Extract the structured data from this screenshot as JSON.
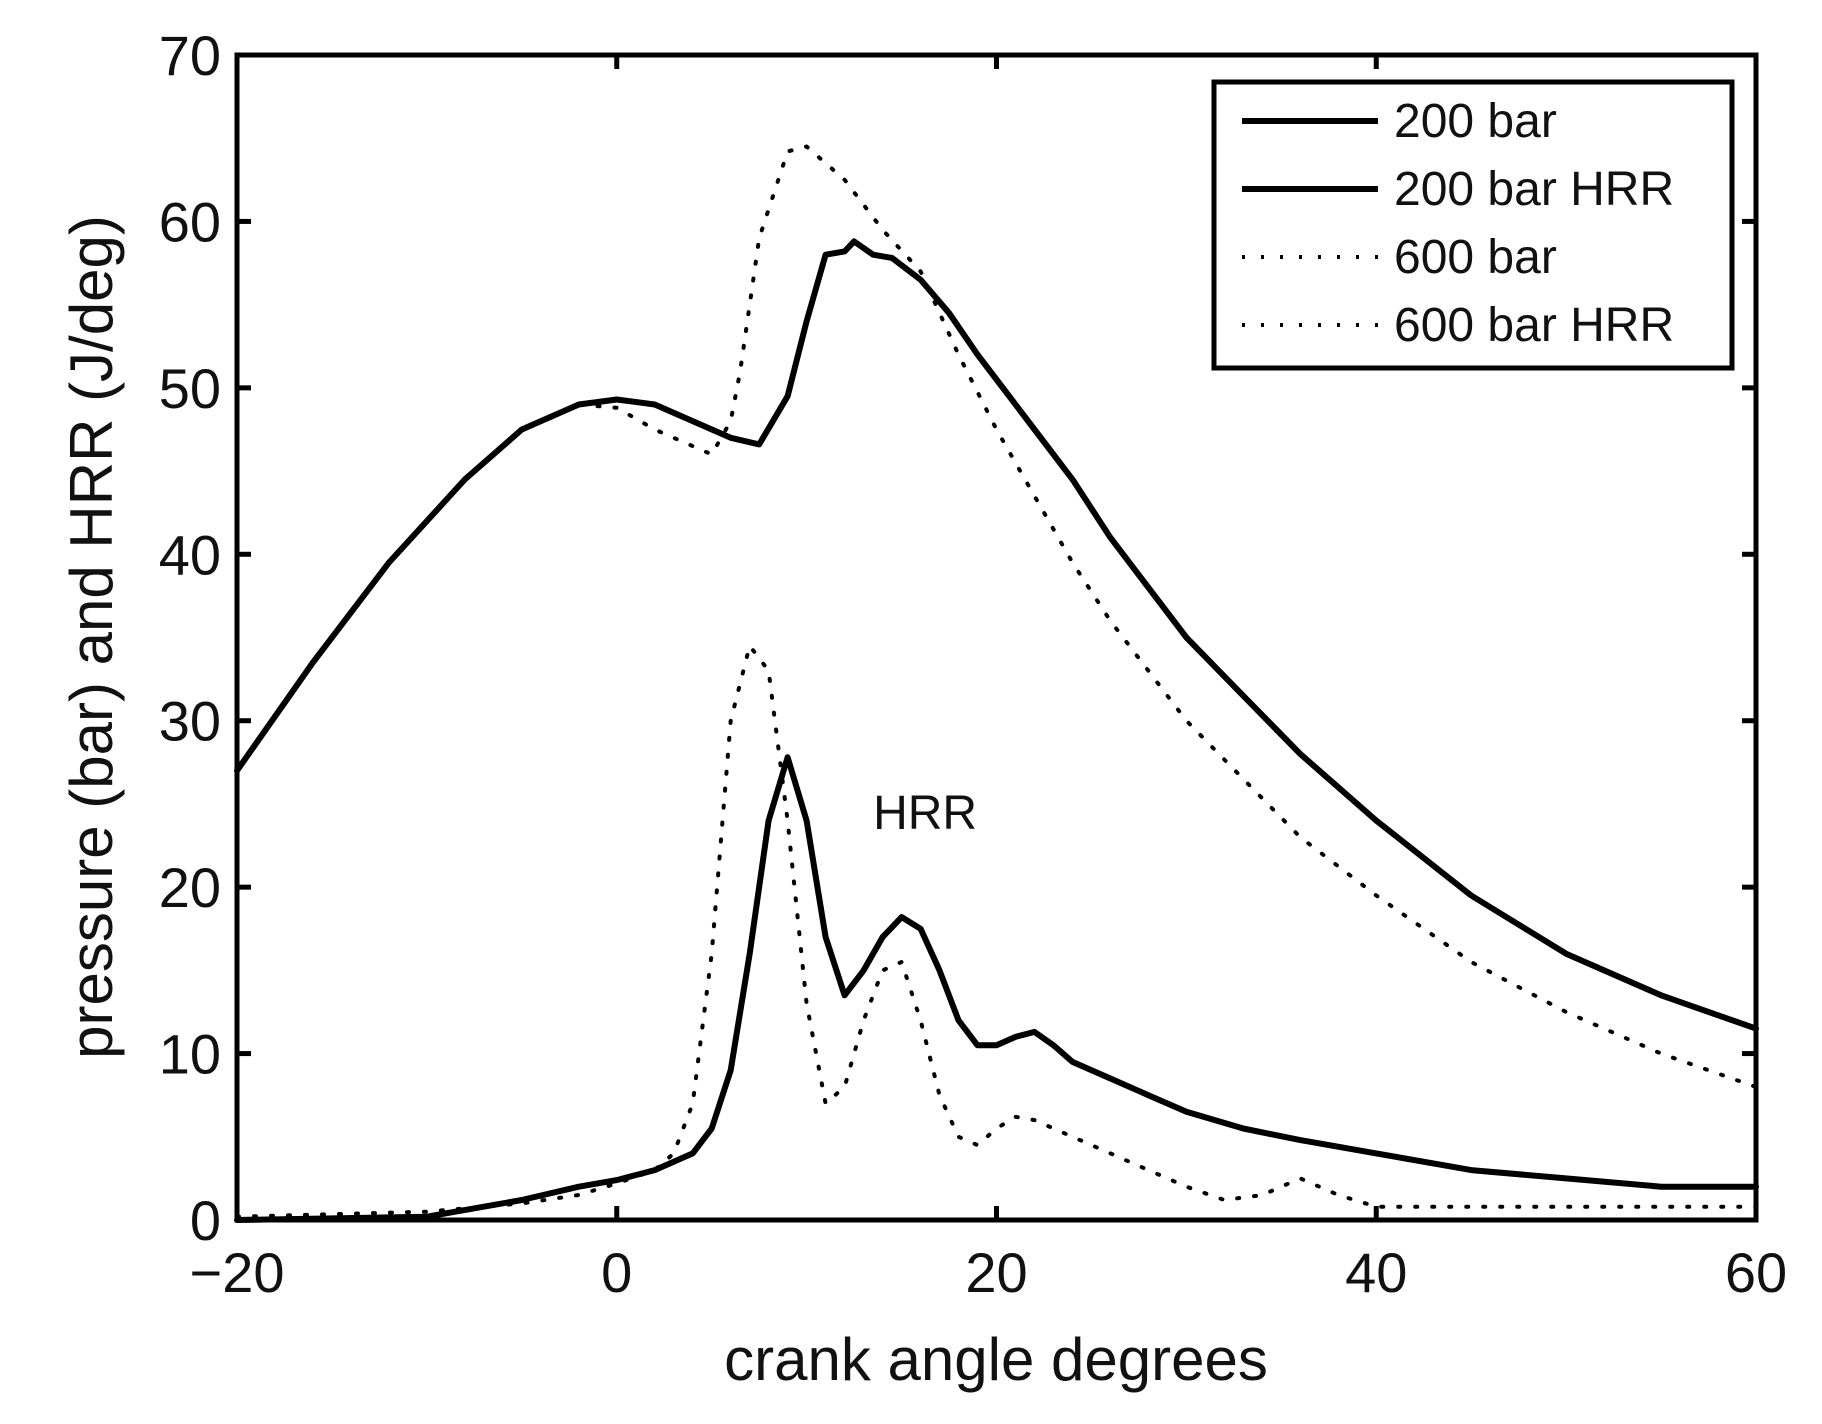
{
  "chart_data": {
    "type": "line",
    "title": "",
    "xlabel": "crank angle degrees",
    "ylabel": "pressure (bar) and HRR (J/deg)",
    "xlim": [
      -20,
      60
    ],
    "ylim": [
      0,
      70
    ],
    "x_ticks": [
      -20,
      0,
      20,
      40,
      60
    ],
    "y_ticks": [
      0,
      10,
      20,
      30,
      40,
      50,
      60,
      70
    ],
    "x_tick_labels": [
      "−20",
      "0",
      "20",
      "40",
      "60"
    ],
    "y_tick_labels": [
      "0",
      "10",
      "20",
      "30",
      "40",
      "50",
      "60",
      "70"
    ],
    "grid": false,
    "legend_position": "top-right",
    "annotations": [
      {
        "text": "HRR",
        "x": 13.5,
        "y": 23.5
      }
    ],
    "series": [
      {
        "name": "200 bar",
        "style": "solid",
        "color": "#000000",
        "x": [
          -20,
          -16,
          -12,
          -8,
          -5,
          -2,
          0,
          2,
          4,
          6,
          7.5,
          9,
          10,
          11,
          12,
          12.5,
          13.5,
          14.5,
          16,
          17.5,
          19,
          20,
          22,
          24,
          26,
          28,
          30,
          33,
          36,
          40,
          45,
          50,
          55,
          60
        ],
        "y": [
          27,
          33.5,
          39.5,
          44.5,
          47.5,
          49,
          49.3,
          49,
          48,
          47,
          46.6,
          49.5,
          54,
          58,
          58.2,
          58.8,
          58,
          57.8,
          56.5,
          54.5,
          52,
          50.5,
          47.5,
          44.5,
          41,
          38,
          35,
          31.5,
          28,
          24,
          19.5,
          16,
          13.5,
          11.5
        ]
      },
      {
        "name": "200 bar HRR",
        "style": "solid",
        "color": "#000000",
        "x": [
          -20,
          -10,
          -5,
          -2,
          0,
          2,
          4,
          5,
          6,
          7,
          8,
          9,
          10,
          11,
          12,
          13,
          14,
          15,
          16,
          17,
          18,
          19,
          20,
          21,
          22,
          23,
          24,
          26,
          28,
          30,
          33,
          36,
          40,
          45,
          50,
          55,
          60
        ],
        "y": [
          0,
          0.2,
          1.2,
          2,
          2.4,
          3,
          4,
          5.5,
          9,
          16,
          24,
          27.8,
          24,
          17,
          13.5,
          15,
          17,
          18.2,
          17.5,
          15,
          12,
          10.5,
          10.5,
          11,
          11.3,
          10.5,
          9.5,
          8.5,
          7.5,
          6.5,
          5.5,
          4.8,
          4,
          3,
          2.5,
          2,
          2
        ]
      },
      {
        "name": "600 bar",
        "style": "dotted",
        "color": "#000000",
        "x": [
          -20,
          -16,
          -12,
          -8,
          -5,
          -2,
          0,
          2,
          4,
          5,
          6,
          6.5,
          7.5,
          9,
          10,
          11,
          12,
          13,
          14,
          16,
          18,
          20,
          22,
          24,
          26,
          28,
          30,
          33,
          36,
          40,
          45,
          50,
          55,
          60
        ],
        "y": [
          27,
          33.5,
          39.5,
          44.5,
          47.5,
          49,
          48.8,
          47.5,
          46.5,
          46,
          48,
          51,
          59,
          64.2,
          64.5,
          63.5,
          62.5,
          61,
          59.5,
          57,
          52,
          47.5,
          43.5,
          39.5,
          36,
          33,
          30,
          26.5,
          23,
          19.5,
          15.5,
          12.5,
          10,
          8
        ]
      },
      {
        "name": "600 bar HRR",
        "style": "dotted",
        "color": "#000000",
        "x": [
          -20,
          -10,
          -5,
          -2,
          0,
          2,
          3,
          4,
          5,
          6,
          7,
          8,
          9,
          10,
          11,
          12,
          13,
          14,
          15,
          16,
          17,
          18,
          19,
          20,
          21,
          22,
          24,
          26,
          28,
          30,
          32,
          34,
          36,
          38,
          40,
          45,
          50,
          55,
          60
        ],
        "y": [
          0.2,
          0.5,
          1,
          1.5,
          2.2,
          3,
          4,
          7,
          16,
          30,
          34.5,
          33,
          24,
          13,
          7,
          8,
          12,
          15,
          15.5,
          12,
          7.5,
          5,
          4.5,
          5.5,
          6.2,
          6,
          5,
          4,
          3,
          2,
          1.2,
          1.5,
          2.5,
          1.5,
          0.8,
          0.8,
          0.8,
          0.8,
          0.8
        ]
      }
    ]
  }
}
